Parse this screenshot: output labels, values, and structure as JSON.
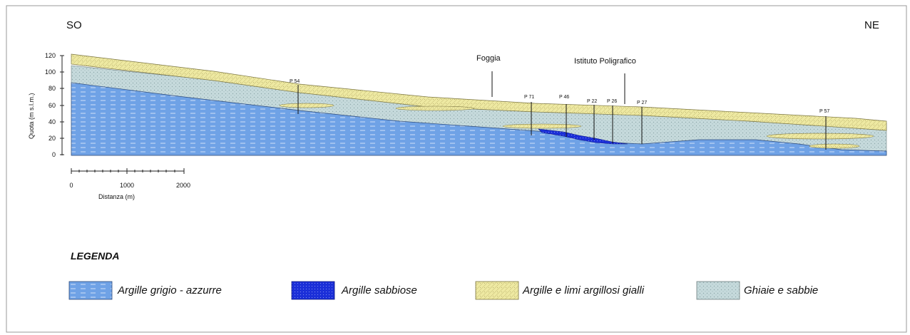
{
  "section": {
    "left_direction": "SO",
    "right_direction": "NE",
    "y_axis": {
      "label": "Quota (m s.l.m.)",
      "ticks": [
        "0",
        "20",
        "40",
        "60",
        "80",
        "100",
        "120"
      ]
    },
    "scale_bar": {
      "ticks": [
        "0",
        "1000",
        "2000"
      ],
      "label": "Distanza (m)"
    },
    "places": [
      {
        "label": "Foggia"
      },
      {
        "label": "Istituto Poligrafico"
      }
    ],
    "wells": [
      {
        "label": "P 54"
      },
      {
        "label": "P 71"
      },
      {
        "label": "P 46"
      },
      {
        "label": "P 22"
      },
      {
        "label": "P 26"
      },
      {
        "label": "P 27"
      },
      {
        "label": "P 57"
      }
    ]
  },
  "legend": {
    "title": "LEGENDA",
    "items": [
      {
        "label": "Argille grigio - azzurre",
        "color": "#6fa2e6"
      },
      {
        "label": "Argille sabbiose",
        "color": "#1b2fd8"
      },
      {
        "label": "Argille e limi argillosi gialli",
        "color": "#eee9a2"
      },
      {
        "label": "Ghiaie e sabbie",
        "color": "#c6dadc"
      }
    ]
  }
}
